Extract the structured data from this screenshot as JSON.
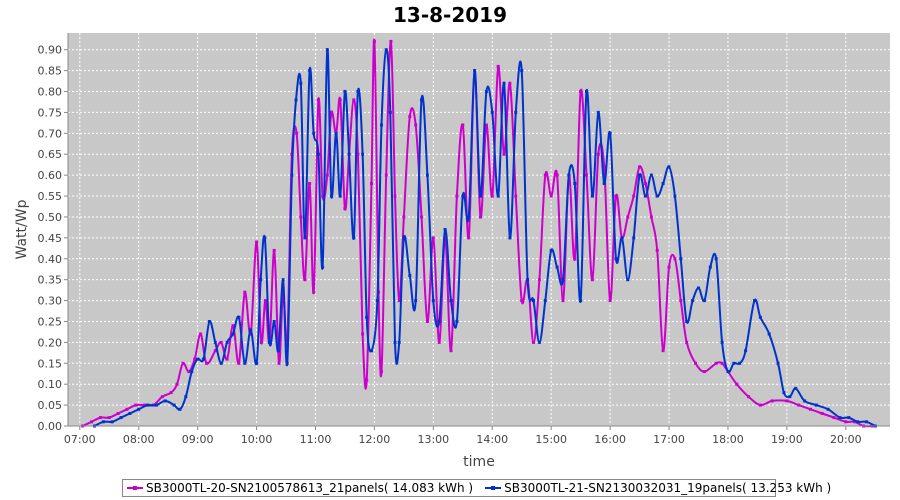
{
  "chart_data": {
    "type": "line",
    "title": "13-8-2019",
    "xlabel": "time",
    "ylabel": "Watt/Wp",
    "xlim": [
      6.8,
      20.75
    ],
    "ylim": [
      0,
      0.94
    ],
    "xticks": [
      "07:00",
      "08:00",
      "09:00",
      "10:00",
      "11:00",
      "12:00",
      "13:00",
      "14:00",
      "15:00",
      "16:00",
      "17:00",
      "18:00",
      "19:00",
      "20:00"
    ],
    "yticks": [
      "0.00",
      "0.05",
      "0.10",
      "0.15",
      "0.20",
      "0.25",
      "0.30",
      "0.35",
      "0.40",
      "0.45",
      "0.50",
      "0.55",
      "0.60",
      "0.65",
      "0.70",
      "0.75",
      "0.80",
      "0.85",
      "0.90"
    ],
    "grid": true,
    "background": "#c8c8c8",
    "legend_position": "bottom",
    "series": [
      {
        "name": "SB3000TL-20-SN2100578613_21panels( 14.083 kWh )",
        "color": "#cc00cc",
        "points": [
          [
            7.05,
            0.0
          ],
          [
            7.2,
            0.01
          ],
          [
            7.35,
            0.02
          ],
          [
            7.5,
            0.02
          ],
          [
            7.65,
            0.03
          ],
          [
            7.8,
            0.04
          ],
          [
            7.95,
            0.05
          ],
          [
            8.1,
            0.05
          ],
          [
            8.25,
            0.05
          ],
          [
            8.4,
            0.07
          ],
          [
            8.55,
            0.08
          ],
          [
            8.65,
            0.1
          ],
          [
            8.75,
            0.15
          ],
          [
            8.85,
            0.13
          ],
          [
            8.95,
            0.16
          ],
          [
            9.05,
            0.22
          ],
          [
            9.15,
            0.15
          ],
          [
            9.3,
            0.18
          ],
          [
            9.4,
            0.2
          ],
          [
            9.5,
            0.16
          ],
          [
            9.6,
            0.24
          ],
          [
            9.7,
            0.15
          ],
          [
            9.8,
            0.32
          ],
          [
            9.9,
            0.22
          ],
          [
            10.0,
            0.44
          ],
          [
            10.08,
            0.2
          ],
          [
            10.15,
            0.3
          ],
          [
            10.22,
            0.2
          ],
          [
            10.3,
            0.42
          ],
          [
            10.38,
            0.15
          ],
          [
            10.45,
            0.32
          ],
          [
            10.52,
            0.2
          ],
          [
            10.6,
            0.65
          ],
          [
            10.68,
            0.7
          ],
          [
            10.75,
            0.5
          ],
          [
            10.82,
            0.35
          ],
          [
            10.9,
            0.58
          ],
          [
            10.97,
            0.32
          ],
          [
            11.05,
            0.78
          ],
          [
            11.12,
            0.55
          ],
          [
            11.2,
            0.6
          ],
          [
            11.27,
            0.75
          ],
          [
            11.35,
            0.7
          ],
          [
            11.42,
            0.78
          ],
          [
            11.5,
            0.52
          ],
          [
            11.57,
            0.65
          ],
          [
            11.65,
            0.78
          ],
          [
            11.72,
            0.65
          ],
          [
            11.8,
            0.22
          ],
          [
            11.87,
            0.11
          ],
          [
            11.95,
            0.58
          ],
          [
            12.0,
            0.92
          ],
          [
            12.07,
            0.32
          ],
          [
            12.12,
            0.13
          ],
          [
            12.2,
            0.6
          ],
          [
            12.28,
            0.92
          ],
          [
            12.35,
            0.55
          ],
          [
            12.42,
            0.3
          ],
          [
            12.5,
            0.5
          ],
          [
            12.6,
            0.74
          ],
          [
            12.7,
            0.72
          ],
          [
            12.8,
            0.5
          ],
          [
            12.9,
            0.25
          ],
          [
            13.0,
            0.45
          ],
          [
            13.1,
            0.2
          ],
          [
            13.2,
            0.45
          ],
          [
            13.3,
            0.18
          ],
          [
            13.4,
            0.55
          ],
          [
            13.5,
            0.72
          ],
          [
            13.6,
            0.45
          ],
          [
            13.7,
            0.85
          ],
          [
            13.8,
            0.5
          ],
          [
            13.9,
            0.72
          ],
          [
            14.0,
            0.55
          ],
          [
            14.1,
            0.86
          ],
          [
            14.2,
            0.65
          ],
          [
            14.3,
            0.82
          ],
          [
            14.4,
            0.55
          ],
          [
            14.5,
            0.3
          ],
          [
            14.6,
            0.35
          ],
          [
            14.7,
            0.2
          ],
          [
            14.8,
            0.35
          ],
          [
            14.9,
            0.6
          ],
          [
            15.0,
            0.55
          ],
          [
            15.1,
            0.6
          ],
          [
            15.2,
            0.3
          ],
          [
            15.3,
            0.6
          ],
          [
            15.4,
            0.4
          ],
          [
            15.5,
            0.8
          ],
          [
            15.6,
            0.6
          ],
          [
            15.7,
            0.35
          ],
          [
            15.8,
            0.65
          ],
          [
            15.9,
            0.62
          ],
          [
            16.0,
            0.3
          ],
          [
            16.1,
            0.55
          ],
          [
            16.2,
            0.45
          ],
          [
            16.3,
            0.5
          ],
          [
            16.4,
            0.55
          ],
          [
            16.5,
            0.62
          ],
          [
            16.6,
            0.58
          ],
          [
            16.7,
            0.5
          ],
          [
            16.8,
            0.42
          ],
          [
            16.9,
            0.18
          ],
          [
            17.0,
            0.38
          ],
          [
            17.1,
            0.4
          ],
          [
            17.2,
            0.3
          ],
          [
            17.3,
            0.2
          ],
          [
            17.45,
            0.15
          ],
          [
            17.6,
            0.13
          ],
          [
            17.8,
            0.15
          ],
          [
            17.9,
            0.15
          ],
          [
            18.0,
            0.13
          ],
          [
            18.15,
            0.1
          ],
          [
            18.35,
            0.07
          ],
          [
            18.55,
            0.05
          ],
          [
            18.75,
            0.06
          ],
          [
            19.0,
            0.06
          ],
          [
            19.2,
            0.05
          ],
          [
            19.4,
            0.04
          ],
          [
            19.6,
            0.03
          ],
          [
            19.8,
            0.02
          ],
          [
            20.0,
            0.01
          ],
          [
            20.15,
            0.01
          ],
          [
            20.3,
            0.0
          ],
          [
            20.45,
            0.0
          ]
        ]
      },
      {
        "name": "SB3000TL-21-SN2130032031_19panels( 13.253 kWh )",
        "color": "#0033cc",
        "points": [
          [
            7.25,
            0.0
          ],
          [
            7.4,
            0.01
          ],
          [
            7.55,
            0.01
          ],
          [
            7.7,
            0.02
          ],
          [
            7.85,
            0.03
          ],
          [
            8.0,
            0.04
          ],
          [
            8.15,
            0.05
          ],
          [
            8.3,
            0.05
          ],
          [
            8.45,
            0.06
          ],
          [
            8.6,
            0.05
          ],
          [
            8.7,
            0.04
          ],
          [
            8.8,
            0.07
          ],
          [
            8.9,
            0.13
          ],
          [
            9.0,
            0.16
          ],
          [
            9.1,
            0.16
          ],
          [
            9.2,
            0.25
          ],
          [
            9.3,
            0.2
          ],
          [
            9.4,
            0.15
          ],
          [
            9.5,
            0.2
          ],
          [
            9.6,
            0.22
          ],
          [
            9.7,
            0.26
          ],
          [
            9.8,
            0.15
          ],
          [
            9.9,
            0.23
          ],
          [
            10.0,
            0.15
          ],
          [
            10.07,
            0.35
          ],
          [
            10.14,
            0.45
          ],
          [
            10.22,
            0.2
          ],
          [
            10.3,
            0.25
          ],
          [
            10.37,
            0.18
          ],
          [
            10.45,
            0.35
          ],
          [
            10.52,
            0.15
          ],
          [
            10.6,
            0.6
          ],
          [
            10.67,
            0.78
          ],
          [
            10.75,
            0.82
          ],
          [
            10.82,
            0.45
          ],
          [
            10.9,
            0.85
          ],
          [
            10.97,
            0.7
          ],
          [
            11.05,
            0.65
          ],
          [
            11.12,
            0.38
          ],
          [
            11.2,
            0.9
          ],
          [
            11.27,
            0.55
          ],
          [
            11.35,
            0.7
          ],
          [
            11.42,
            0.55
          ],
          [
            11.5,
            0.8
          ],
          [
            11.57,
            0.65
          ],
          [
            11.65,
            0.45
          ],
          [
            11.72,
            0.8
          ],
          [
            11.8,
            0.65
          ],
          [
            11.87,
            0.26
          ],
          [
            11.95,
            0.18
          ],
          [
            12.05,
            0.3
          ],
          [
            12.12,
            0.72
          ],
          [
            12.2,
            0.9
          ],
          [
            12.27,
            0.75
          ],
          [
            12.35,
            0.2
          ],
          [
            12.42,
            0.2
          ],
          [
            12.5,
            0.45
          ],
          [
            12.6,
            0.36
          ],
          [
            12.7,
            0.3
          ],
          [
            12.8,
            0.78
          ],
          [
            12.9,
            0.6
          ],
          [
            13.0,
            0.3
          ],
          [
            13.1,
            0.25
          ],
          [
            13.2,
            0.47
          ],
          [
            13.3,
            0.3
          ],
          [
            13.4,
            0.25
          ],
          [
            13.5,
            0.55
          ],
          [
            13.6,
            0.5
          ],
          [
            13.7,
            0.85
          ],
          [
            13.8,
            0.55
          ],
          [
            13.9,
            0.8
          ],
          [
            14.0,
            0.75
          ],
          [
            14.1,
            0.55
          ],
          [
            14.2,
            0.82
          ],
          [
            14.3,
            0.45
          ],
          [
            14.4,
            0.75
          ],
          [
            14.5,
            0.85
          ],
          [
            14.6,
            0.35
          ],
          [
            14.7,
            0.3
          ],
          [
            14.8,
            0.2
          ],
          [
            14.9,
            0.3
          ],
          [
            15.0,
            0.42
          ],
          [
            15.1,
            0.38
          ],
          [
            15.2,
            0.35
          ],
          [
            15.3,
            0.6
          ],
          [
            15.4,
            0.58
          ],
          [
            15.5,
            0.3
          ],
          [
            15.6,
            0.8
          ],
          [
            15.7,
            0.55
          ],
          [
            15.8,
            0.75
          ],
          [
            15.9,
            0.58
          ],
          [
            16.0,
            0.7
          ],
          [
            16.1,
            0.4
          ],
          [
            16.2,
            0.45
          ],
          [
            16.3,
            0.35
          ],
          [
            16.4,
            0.45
          ],
          [
            16.5,
            0.6
          ],
          [
            16.6,
            0.55
          ],
          [
            16.7,
            0.6
          ],
          [
            16.8,
            0.55
          ],
          [
            16.9,
            0.58
          ],
          [
            17.0,
            0.62
          ],
          [
            17.1,
            0.55
          ],
          [
            17.2,
            0.4
          ],
          [
            17.3,
            0.25
          ],
          [
            17.4,
            0.3
          ],
          [
            17.5,
            0.33
          ],
          [
            17.6,
            0.3
          ],
          [
            17.7,
            0.38
          ],
          [
            17.8,
            0.4
          ],
          [
            17.9,
            0.2
          ],
          [
            18.0,
            0.13
          ],
          [
            18.1,
            0.15
          ],
          [
            18.2,
            0.15
          ],
          [
            18.3,
            0.18
          ],
          [
            18.45,
            0.3
          ],
          [
            18.55,
            0.26
          ],
          [
            18.7,
            0.22
          ],
          [
            18.85,
            0.15
          ],
          [
            18.95,
            0.08
          ],
          [
            19.05,
            0.07
          ],
          [
            19.15,
            0.09
          ],
          [
            19.3,
            0.06
          ],
          [
            19.5,
            0.05
          ],
          [
            19.7,
            0.04
          ],
          [
            19.9,
            0.02
          ],
          [
            20.05,
            0.02
          ],
          [
            20.2,
            0.01
          ],
          [
            20.35,
            0.01
          ],
          [
            20.5,
            0.0
          ]
        ]
      }
    ]
  }
}
